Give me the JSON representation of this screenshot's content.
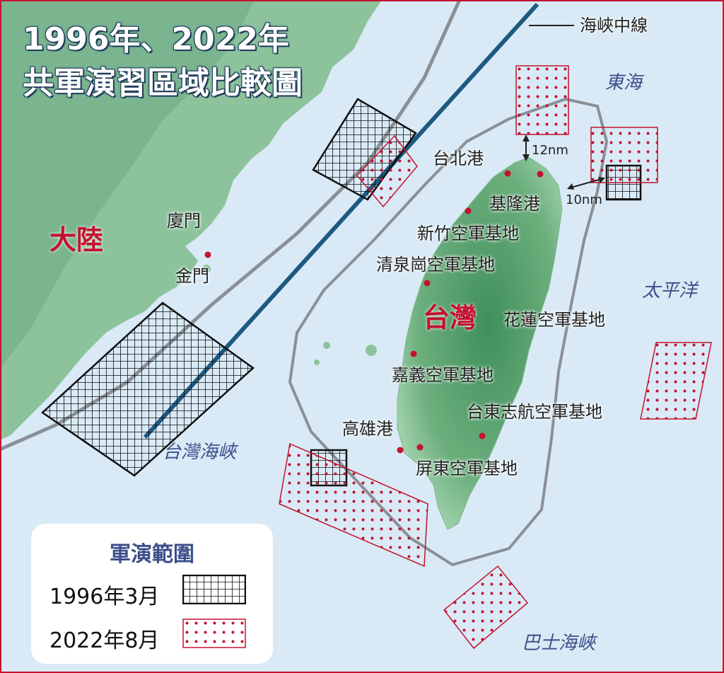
{
  "title": {
    "line1": "1996年、2022年",
    "line2": "共軍演習區域比較圖"
  },
  "median_line_label": "海峽中線",
  "seas": {
    "east_china_sea": "東海",
    "pacific_ocean": "太平洋",
    "taiwan_strait": "台灣海峽",
    "bashi_channel": "巴士海峽"
  },
  "regions": {
    "mainland": "大陸",
    "taiwan": "台灣"
  },
  "places": {
    "xiamen": "廈門",
    "kinmen": "金門",
    "taipei_port": "台北港",
    "keelung_port": "基隆港",
    "hsinchu_airbase": "新竹空軍基地",
    "chingchuankang_airbase": "清泉崗空軍基地",
    "hualien_airbase": "花蓮空軍基地",
    "chiayi_airbase": "嘉義空軍基地",
    "taitung_chihhang_airbase": "台東志航空軍基地",
    "kaohsiung_port": "高雄港",
    "pingtung_airbase": "屏東空軍基地"
  },
  "distances": {
    "north": "12nm",
    "northeast": "10nm"
  },
  "legend": {
    "title": "軍演範圍",
    "item_1996": "1996年3月",
    "item_2022": "2022年8月"
  },
  "colors": {
    "sea": "#d9eaf6",
    "land": "#8cc39c",
    "exercise_1996": "#111111",
    "exercise_2022": "#c4122f",
    "median_line": "#1d5a82",
    "border": "#c4122f"
  },
  "icons": {
    "place_marker": "red-dot",
    "legend_1996": "black-grid-pattern",
    "legend_2022": "red-dot-pattern"
  }
}
